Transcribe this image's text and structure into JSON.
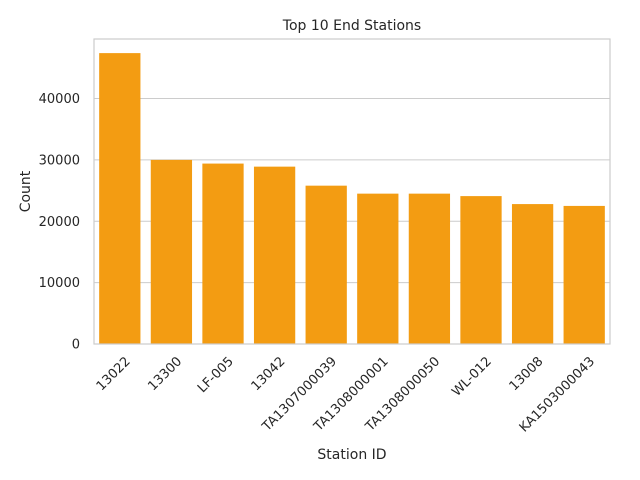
{
  "chart_data": {
    "type": "bar",
    "title": "Top 10 End Stations",
    "xlabel": "Station ID",
    "ylabel": "Count",
    "categories": [
      "13022",
      "13300",
      "LF-005",
      "13042",
      "TA1307000039",
      "TA1308000001",
      "TA1308000050",
      "WL-012",
      "13008",
      "KA1503000043"
    ],
    "values": [
      47400,
      30000,
      29400,
      28900,
      25800,
      24500,
      24500,
      24100,
      22800,
      22500
    ],
    "yticks": [
      0,
      10000,
      20000,
      30000,
      40000
    ],
    "ylim": [
      0,
      49700
    ],
    "grid": true,
    "bar_color": "#f39c12"
  }
}
